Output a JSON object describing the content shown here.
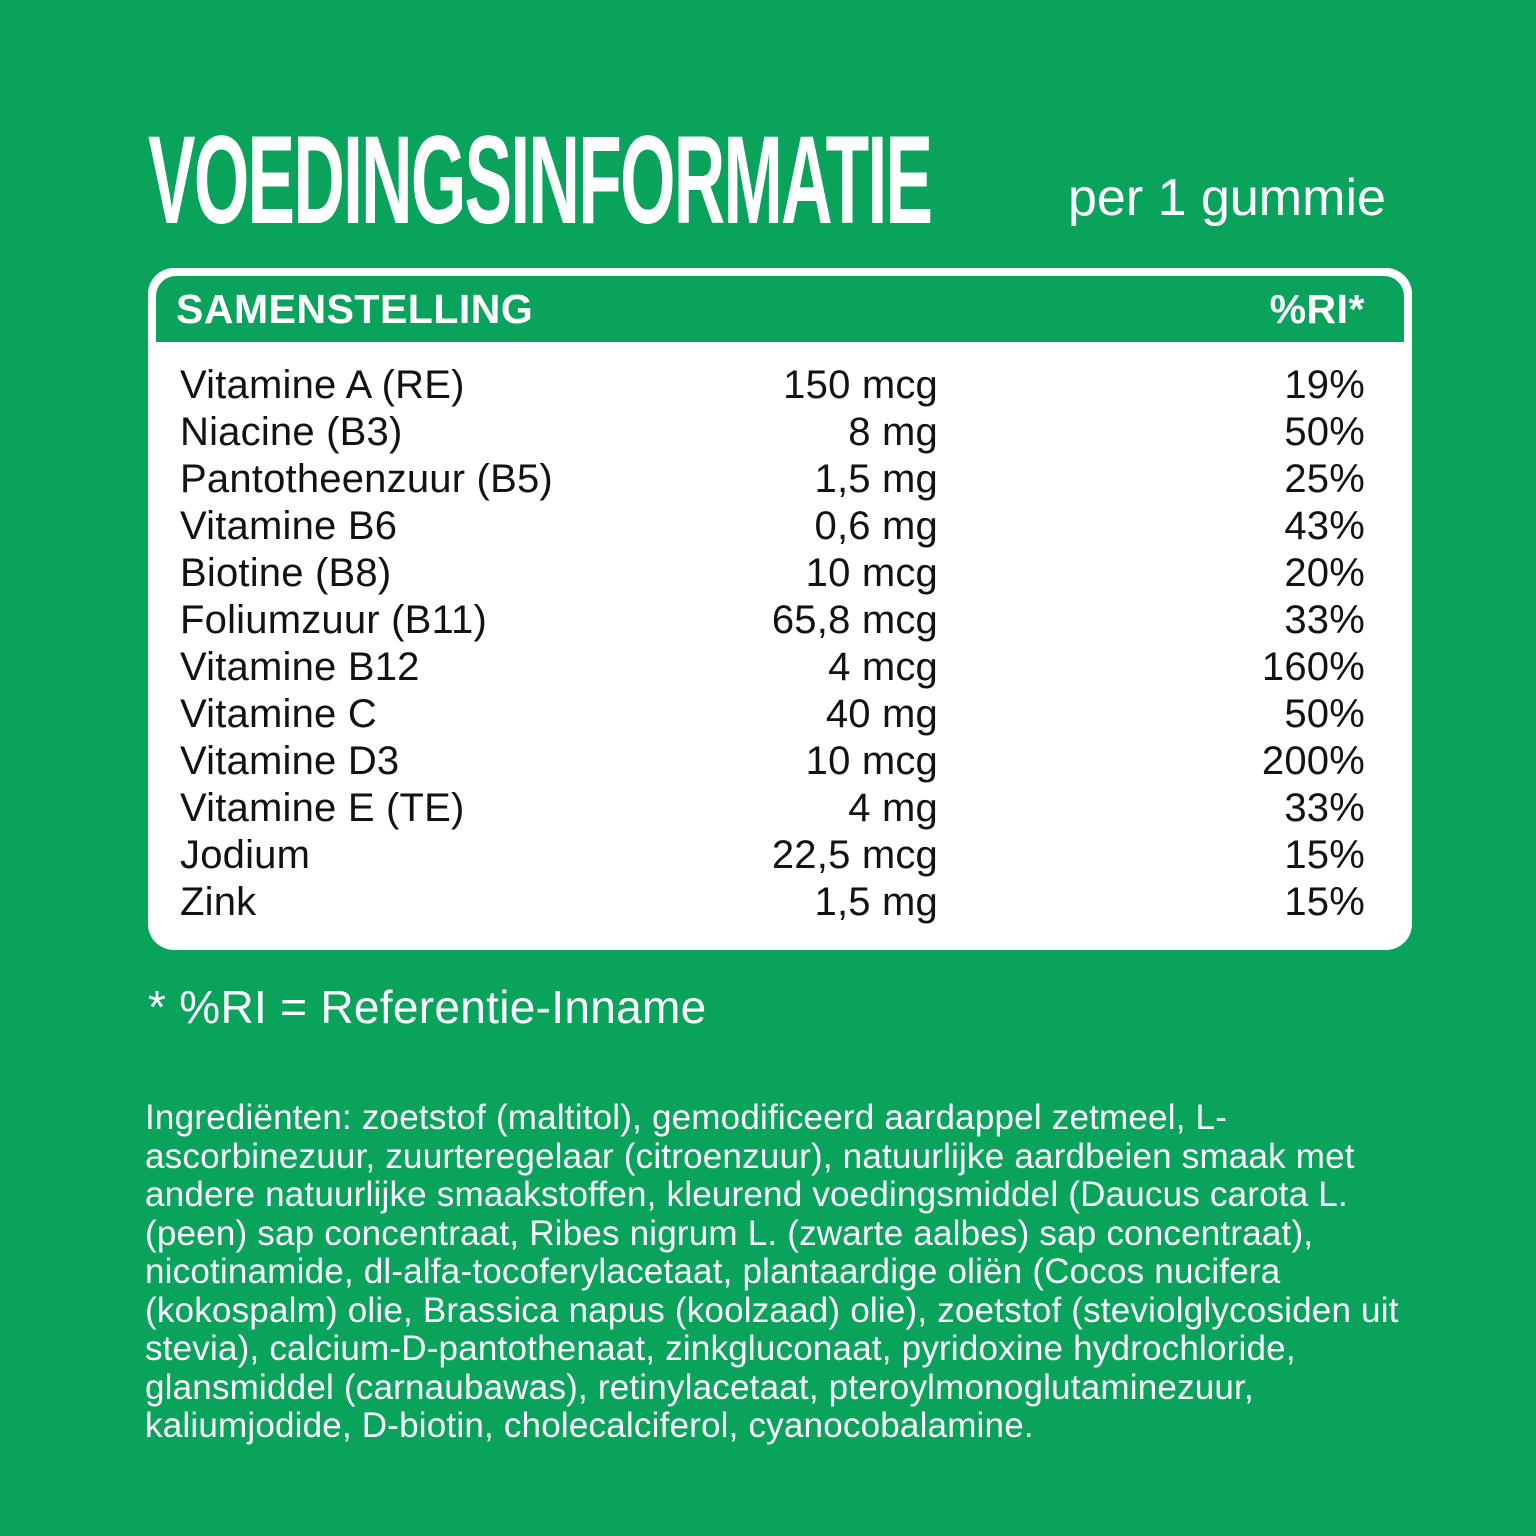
{
  "colors": {
    "background_green": "#0AA35C",
    "card_white": "#FFFFFF",
    "text_dark": "#121212",
    "text_white": "#FFFFFF"
  },
  "header": {
    "title": "VOEDINGSINFORMATIE",
    "serving": "per 1 gummie"
  },
  "table": {
    "columns": {
      "composition": "SAMENSTELLING",
      "ri": "%RI*"
    },
    "rows": [
      {
        "name": "Vitamine A (RE)",
        "amount": "150 mcg",
        "ri": "19%"
      },
      {
        "name": "Niacine (B3)",
        "amount": "8 mg",
        "ri": "50%"
      },
      {
        "name": "Pantotheenzuur (B5)",
        "amount": "1,5 mg",
        "ri": "25%"
      },
      {
        "name": "Vitamine B6",
        "amount": "0,6 mg",
        "ri": "43%"
      },
      {
        "name": "Biotine (B8)",
        "amount": "10 mcg",
        "ri": "20%"
      },
      {
        "name": "Foliumzuur (B11)",
        "amount": "65,8 mcg",
        "ri": "33%"
      },
      {
        "name": "Vitamine B12",
        "amount": "4 mcg",
        "ri": "160%"
      },
      {
        "name": "Vitamine C",
        "amount": "40 mg",
        "ri": "50%"
      },
      {
        "name": "Vitamine D3",
        "amount": "10 mcg",
        "ri": "200%"
      },
      {
        "name": "Vitamine E (TE)",
        "amount": "4 mg",
        "ri": "33%"
      },
      {
        "name": "Jodium",
        "amount": "22,5 mcg",
        "ri": "15%"
      },
      {
        "name": "Zink",
        "amount": "1,5 mg",
        "ri": "15%"
      }
    ]
  },
  "footnote": "* %RI = Referentie-Inname",
  "ingredients": {
    "full_text": "Ingrediënten: zoetstof (maltitol), gemodificeerd aardappel zetmeel, L-ascorbinezuur, zuurteregelaar (citroenzuur), natuurlijke aardbeien smaak met andere natuurlijke smaakstoffen, kleurend voedingsmiddel (Daucus carota L. (peen) sap concentraat, Ribes nigrum L. (zwarte aalbes) sap concentraat), nicotinamide, dl-alfa-tocoferylacetaat, plantaardige oliën (Cocos nucifera (kokospalm) olie, Brassica napus (koolzaad) olie), zoetstof (steviolglycosiden uit stevia), calcium-D-pantothenaat, zinkgluconaat, pyridoxine hydrochloride, glansmiddel (carnaubawas), retinylacetaat, pteroylmonoglutaminezuur, kaliumjodide, D-biotin, cholecalciferol, cyanocobalamine.",
    "lines": [
      "Ingrediënten: zoetstof (maltitol), gemodificeerd aardappel zetmeel, L-",
      "ascorbinezuur, zuurteregelaar (citroenzuur), natuurlijke aardbeien smaak met",
      "andere natuurlijke smaakstoffen, kleurend voedingsmiddel (Daucus carota L.",
      "(peen) sap concentraat, Ribes nigrum L. (zwarte aalbes) sap concentraat),",
      "nicotinamide, dl-alfa-tocoferylacetaat, plantaardige oliën (Cocos nucifera",
      "(kokospalm) olie, Brassica napus (koolzaad) olie), zoetstof (steviolglycosiden uit",
      "stevia), calcium-D-pantothenaat, zinkgluconaat, pyridoxine hydrochloride,",
      "glansmiddel (carnaubawas), retinylacetaat, pteroylmonoglutaminezuur,",
      "kaliumjodide, D-biotin, cholecalciferol, cyanocobalamine."
    ]
  }
}
